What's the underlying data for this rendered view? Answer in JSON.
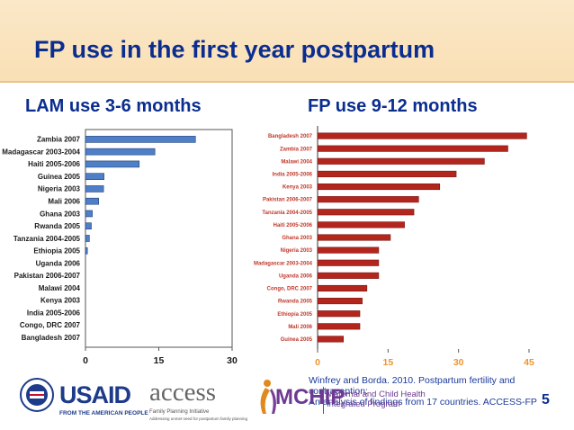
{
  "slide": {
    "title": "FP use in the first year postpartum",
    "left_heading": "LAM use 3-6 months",
    "right_heading": "FP use 9-12 months",
    "citation_line1": "Winfrey and Borda. 2010.  Postpartum fertility and contraception:",
    "citation_line2": "An analysis of findings from 17 countries. ACCESS-FP",
    "page_number": "5"
  },
  "logos": {
    "usaid": {
      "name": "USAID",
      "tagline": "FROM THE AMERICAN PEOPLE"
    },
    "access": {
      "name": "access",
      "line1": "Family Planning Initiative",
      "line2": "Addressing unmet need for postpartum family planning"
    },
    "mchip": {
      "name": "MCHIP",
      "line1": "Maternal and Child Health",
      "line2": "Integrated Program"
    }
  },
  "colors": {
    "title": "#0a2d8f",
    "header_bg": "#fbe8c8",
    "lam_bar": "#4f7fc7",
    "fp_bar": "#b3261e",
    "fp_label": "#c0392b",
    "fp_axis_label": "#f0942b"
  },
  "chart_data": [
    {
      "type": "bar",
      "orientation": "horizontal",
      "categories": [
        "Zambia 2007",
        "Madagascar 2003-2004",
        "Haiti 2005-2006",
        "Guinea 2005",
        "Nigeria 2003",
        "Mali 2006",
        "Ghana 2003",
        "Rwanda 2005",
        "Tanzania 2004-2005",
        "Ethiopia 2005",
        "Uganda 2006",
        "Pakistan 2006-2007",
        "Malawi 2004",
        "Kenya 2003",
        "India 2005-2006",
        "Congo, DRC 2007",
        "Bangladesh 2007"
      ],
      "values": [
        22.5,
        14.2,
        11.0,
        3.8,
        3.7,
        2.7,
        1.4,
        1.2,
        0.8,
        0.4,
        0,
        0,
        0,
        0,
        0,
        0,
        0
      ],
      "xlim": [
        0,
        30
      ],
      "xticks": [
        "0",
        "15",
        "30"
      ],
      "grid": false
    },
    {
      "type": "bar",
      "orientation": "horizontal",
      "categories": [
        "Bangladesh 2007",
        "Zambia 2007",
        "Malawi 2004",
        "India 2005-2006",
        "Kenya 2003",
        "Pakistan 2006-2007",
        "Tanzania 2004-2005",
        "Haiti 2005-2006",
        "Ghana 2003",
        "Nigeria 2003",
        "Madagascar 2003-2004",
        "Uganda 2006",
        "Congo, DRC 2007",
        "Rwanda 2005",
        "Ethiopia 2005",
        "Mali 2006",
        "Guinea 2005"
      ],
      "values": [
        44.5,
        40.5,
        35.5,
        29.5,
        26.0,
        21.5,
        20.5,
        18.5,
        15.5,
        13.0,
        13.0,
        13.0,
        10.5,
        9.5,
        9.0,
        9.0,
        5.5
      ],
      "xlim": [
        0,
        45
      ],
      "xticks": [
        "0",
        "15",
        "30",
        "45"
      ],
      "grid": false
    }
  ]
}
